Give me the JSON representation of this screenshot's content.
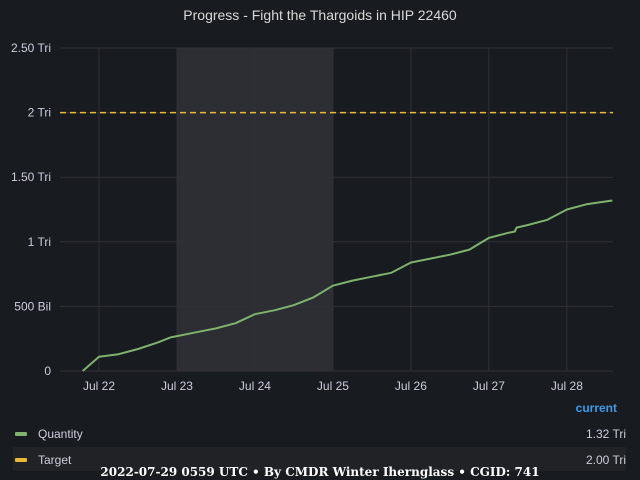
{
  "colors": {
    "background": "#181b1f",
    "grid": "#2f3136",
    "shaded_region": "#2c2e33",
    "quantity": "#7eb26d",
    "target": "#eab839",
    "legend_header": "#3d9be9"
  },
  "chart_data": {
    "type": "line",
    "title": "Progress - Fight the Thargoids in HIP 22460",
    "xlabel": "",
    "ylabel": "",
    "x_ticks": [
      "Jul 22",
      "Jul 23",
      "Jul 24",
      "Jul 25",
      "Jul 26",
      "Jul 27",
      "Jul 28"
    ],
    "x_range": [
      "2022-07-21 12:00",
      "2022-07-28 14:12"
    ],
    "y_ticks": [
      "0",
      "500 Bil",
      "1 Tri",
      "1.50 Tri",
      "2 Tri",
      "2.50 Tri"
    ],
    "y_tick_values": [
      0,
      0.5,
      1.0,
      1.5,
      2.0,
      2.5
    ],
    "y_unit": "Tri",
    "ylim": [
      0,
      2.5
    ],
    "grid": true,
    "shaded_region": [
      "2022-07-23 00:00",
      "2022-07-25 00:00"
    ],
    "series": [
      {
        "name": "Quantity",
        "color": "#7eb26d",
        "style": "solid",
        "x": [
          "2022-07-21 19:00",
          "2022-07-22 00:00",
          "2022-07-22 06:00",
          "2022-07-22 12:00",
          "2022-07-22 18:00",
          "2022-07-22 22:00",
          "2022-07-23 00:00",
          "2022-07-23 06:00",
          "2022-07-23 12:00",
          "2022-07-23 18:00",
          "2022-07-24 00:00",
          "2022-07-24 06:00",
          "2022-07-24 12:00",
          "2022-07-24 18:00",
          "2022-07-25 00:00",
          "2022-07-25 06:00",
          "2022-07-25 12:00",
          "2022-07-25 18:00",
          "2022-07-26 00:00",
          "2022-07-26 06:00",
          "2022-07-26 12:00",
          "2022-07-26 18:00",
          "2022-07-27 00:00",
          "2022-07-27 06:00",
          "2022-07-27 08:00",
          "2022-07-27 08:30",
          "2022-07-27 12:00",
          "2022-07-27 18:00",
          "2022-07-28 00:00",
          "2022-07-28 06:00",
          "2022-07-28 14:00"
        ],
        "values": [
          0.0,
          0.11,
          0.13,
          0.17,
          0.22,
          0.26,
          0.27,
          0.3,
          0.33,
          0.37,
          0.44,
          0.47,
          0.51,
          0.57,
          0.66,
          0.7,
          0.73,
          0.76,
          0.84,
          0.87,
          0.9,
          0.94,
          1.03,
          1.07,
          1.08,
          1.11,
          1.13,
          1.17,
          1.25,
          1.29,
          1.32
        ]
      },
      {
        "name": "Target",
        "color": "#eab839",
        "style": "dashed",
        "x": [
          "2022-07-21 12:00",
          "2022-07-28 14:12"
        ],
        "values": [
          2.0,
          2.0
        ]
      }
    ]
  },
  "legend": {
    "header": "current",
    "placement": "bottom",
    "items": [
      {
        "name": "Quantity",
        "current": "1.32 Tri",
        "color": "#7eb26d"
      },
      {
        "name": "Target",
        "current": "2.00 Tri",
        "color": "#eab839"
      }
    ]
  },
  "footer": "2022-07-29 0559 UTC • By CMDR Winter Ihernglass • CGID: 741"
}
